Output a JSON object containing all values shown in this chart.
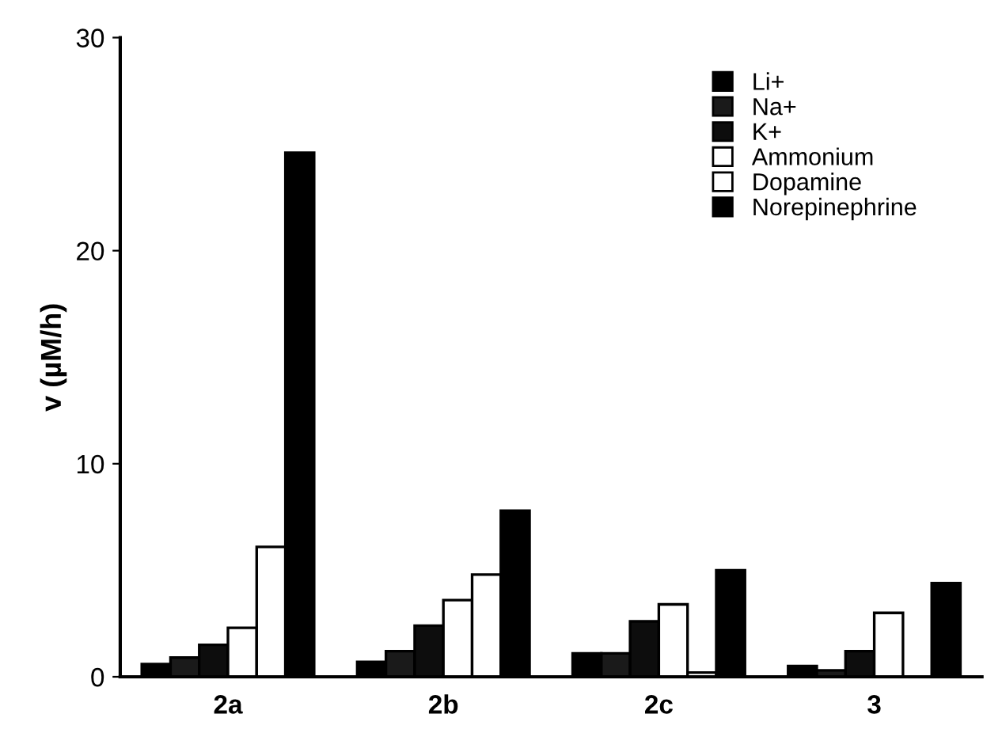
{
  "chart_data": {
    "type": "bar",
    "ylabel": "v (µM/h)",
    "categories": [
      "2a",
      "2b",
      "2c",
      "3"
    ],
    "series": [
      {
        "name": "Li+",
        "color": "#000000",
        "values": [
          0.6,
          0.7,
          1.1,
          0.5
        ]
      },
      {
        "name": "Na+",
        "color": "#1a1a1a",
        "values": [
          0.9,
          1.2,
          1.1,
          0.3
        ]
      },
      {
        "name": "K+",
        "color": "#0d0d0d",
        "values": [
          1.5,
          2.4,
          2.6,
          1.2
        ]
      },
      {
        "name": "Ammonium",
        "color": "#ffffff",
        "values": [
          2.3,
          3.6,
          3.4,
          3.0
        ]
      },
      {
        "name": "Dopamine",
        "color": "#ffffff",
        "values": [
          6.1,
          4.8,
          0.2,
          null
        ]
      },
      {
        "name": "Norepinephrine",
        "color": "#000000",
        "values": [
          24.6,
          7.8,
          5.0,
          4.4
        ]
      }
    ],
    "ylim": [
      0,
      30
    ],
    "yticks": [
      0,
      10,
      20,
      30
    ],
    "grid": false,
    "legend": "top right"
  }
}
